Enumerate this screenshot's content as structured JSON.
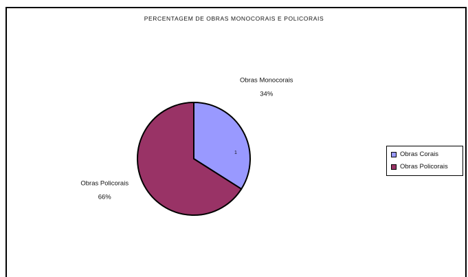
{
  "chart_data": {
    "type": "pie",
    "title": "PERCENTAGEM DE OBRAS MONOCORAIS E POLICORAIS",
    "slices": [
      {
        "label": "Obras Monocorais",
        "percent_label": "34%",
        "value": 34,
        "color": "#9999ff"
      },
      {
        "label": "Obras Policorais",
        "percent_label": "66%",
        "value": 66,
        "color": "#993366"
      }
    ],
    "center_mark": "1",
    "legend": {
      "position": "right",
      "entries": [
        {
          "label": "Obras Corais",
          "color": "#9999ff"
        },
        {
          "label": "Obras Policorais",
          "color": "#993366"
        }
      ]
    }
  }
}
